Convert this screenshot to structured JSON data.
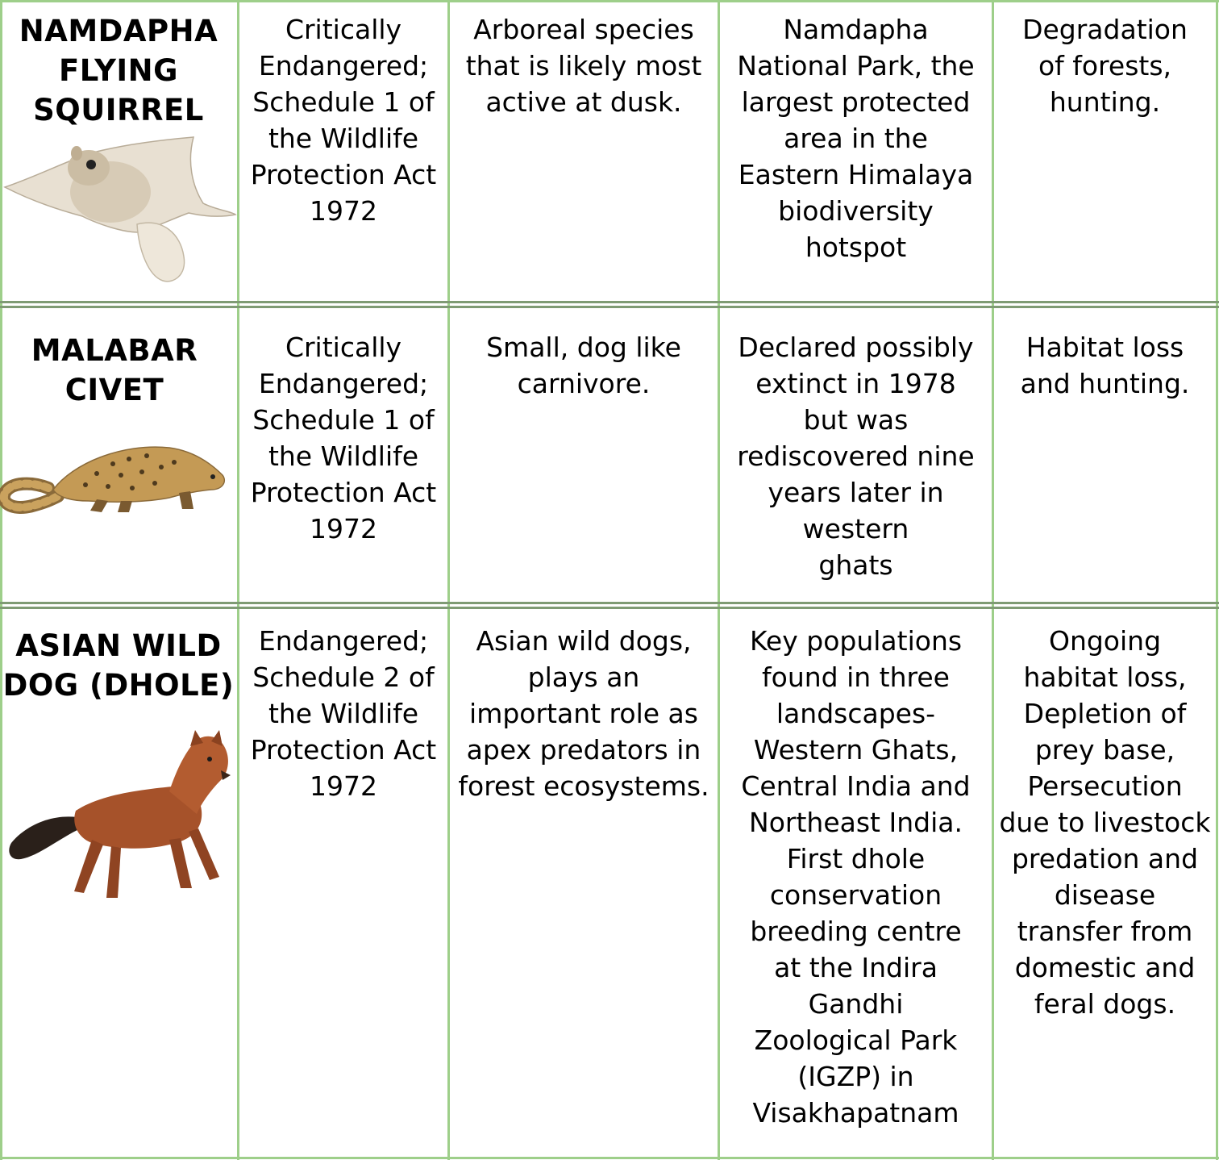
{
  "rows": [
    {
      "name": "NAMDAPHA\nFLYING\nSQUIRREL",
      "status": "Critically\nEndangered;\nSchedule 1 of\nthe Wildlife\nProtection Act\n1972",
      "description": "Arboreal species\nthat is likely most\nactive at dusk.",
      "location": "Namdapha\nNational Park, the\nlargest protected\narea in the\nEastern Himalaya\nbiodiversity\nhotspot",
      "threats": "Degradation\nof forests,\nhunting.",
      "image_icon": "flying-squirrel-illustration"
    },
    {
      "name": "MALABAR\nCIVET",
      "status": "Critically\nEndangered;\nSchedule 1 of\nthe Wildlife\nProtection Act\n1972",
      "description": "Small, dog like\ncarnivore.",
      "location": "Declared possibly\nextinct in 1978\nbut was\nrediscovered nine\nyears later in\nwestern\nghats",
      "threats": "Habitat loss\nand hunting.",
      "image_icon": "civet-illustration"
    },
    {
      "name": "ASIAN WILD\nDOG (DHOLE)",
      "status": "Endangered;\nSchedule 2 of\nthe Wildlife\nProtection Act\n1972",
      "description": "Asian wild dogs,\nplays an\nimportant role as\napex predators in\nforest ecosystems.",
      "location": "Key populations\nfound in three\nlandscapes-\nWestern Ghats,\nCentral India and\nNortheast India.\nFirst dhole\nconservation\nbreeding centre\nat the Indira\nGandhi\nZoological Park\n(IGZP) in\nVisakhapatnam",
      "threats": "Ongoing\nhabitat loss,\nDepletion of\nprey base,\nPersecution\ndue to livestock\npredation and\ndisease\ntransfer from\ndomestic and\nferal dogs.",
      "image_icon": "dhole-photo"
    }
  ],
  "colors": {
    "grid": "#9ecf8a",
    "row_divider": "#7f9b74"
  }
}
